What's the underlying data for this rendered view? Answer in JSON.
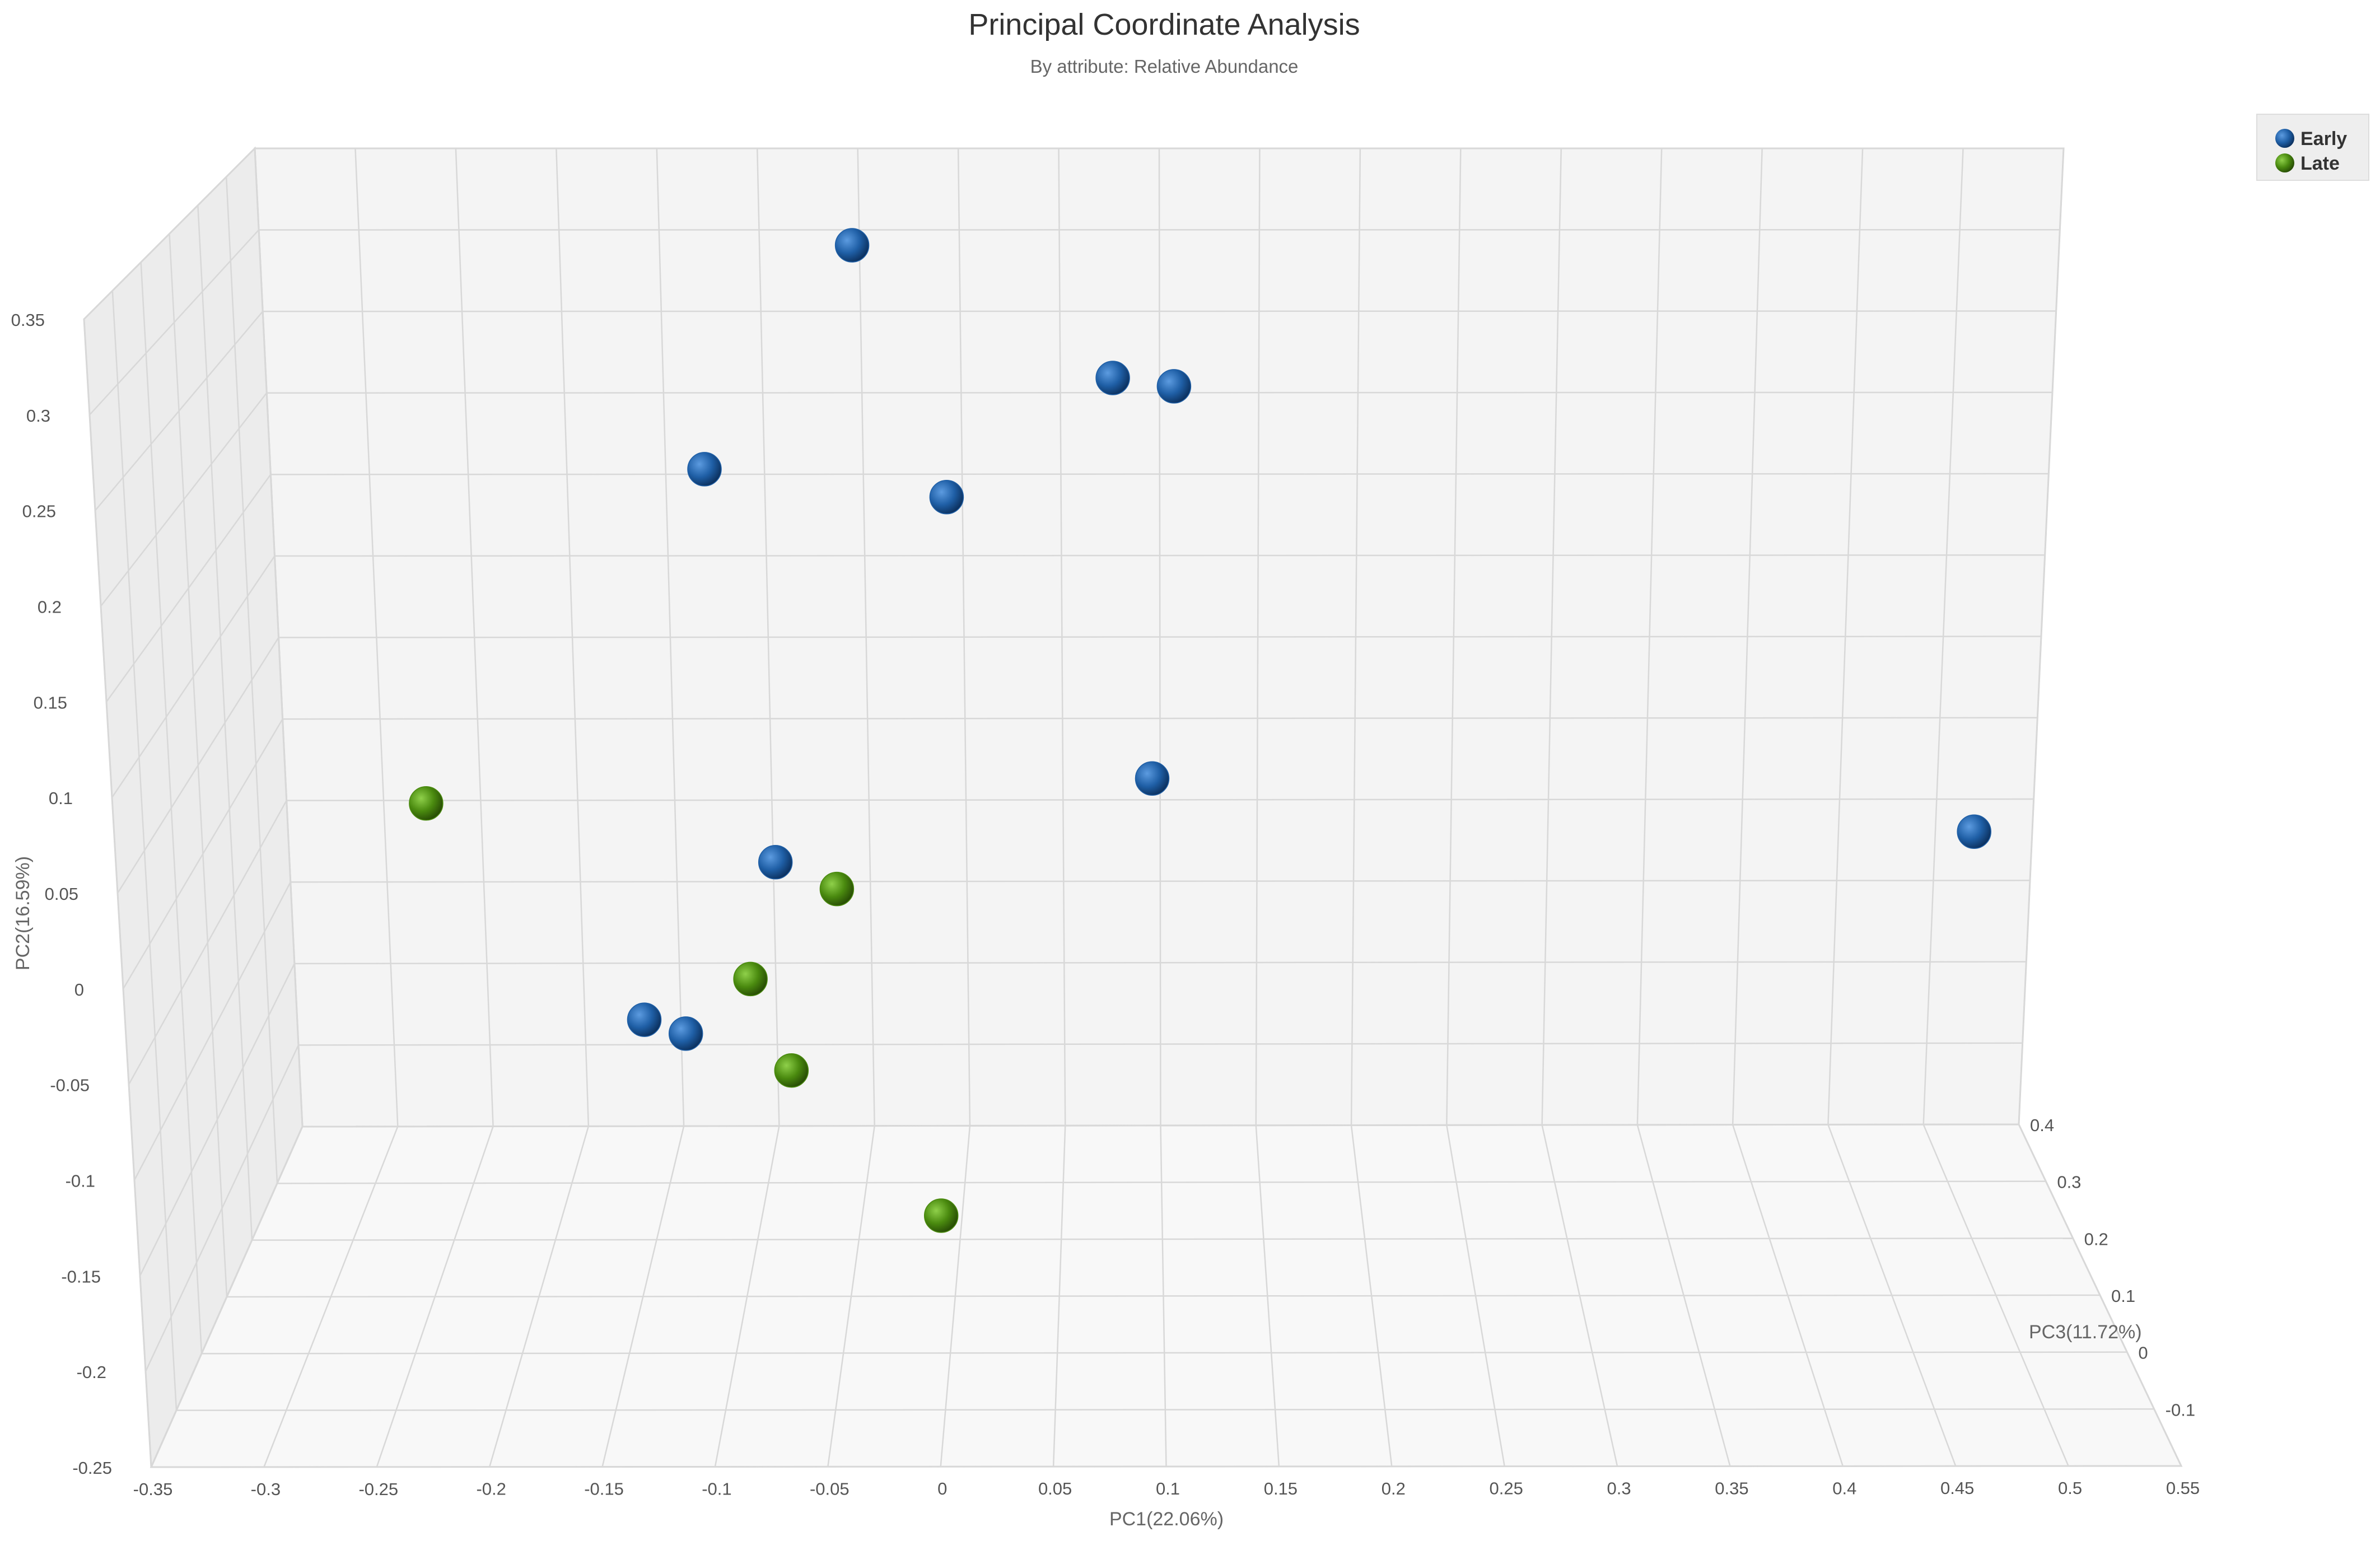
{
  "chart_data": {
    "type": "scatter",
    "title": "Principal Coordinate Analysis",
    "subtitle": "By attribute: Relative Abundance",
    "xlabel": "PC1(22.06%)",
    "ylabel": "PC2(16.59%)",
    "zlabel": "PC3(11.72%)",
    "x_ticks": [
      "-0.35",
      "-0.3",
      "-0.25",
      "-0.2",
      "-0.15",
      "-0.1",
      "-0.05",
      "0",
      "0.05",
      "0.1",
      "0.15",
      "0.2",
      "0.25",
      "0.3",
      "0.35",
      "0.4",
      "0.45",
      "0.5",
      "0.55"
    ],
    "y_ticks": [
      "-0.25",
      "-0.2",
      "-0.15",
      "-0.1",
      "-0.05",
      "0",
      "0.05",
      "0.1",
      "0.15",
      "0.2",
      "0.25",
      "0.3",
      "0.35"
    ],
    "z_ticks": [
      "-0.1",
      "0",
      "0.1",
      "0.2",
      "0.3",
      "0.4"
    ],
    "xlim": [
      -0.35,
      0.55
    ],
    "ylim": [
      -0.25,
      0.35
    ],
    "zlim": [
      -0.2,
      0.4
    ],
    "grid": true,
    "legend_position": "top-right",
    "series": [
      {
        "name": "Early",
        "color": "#1f5fa6",
        "points": [
          {
            "x": -0.05,
            "y": 0.3,
            "z": 0.35
          },
          {
            "x": 0.08,
            "y": 0.23,
            "z": 0.3
          },
          {
            "x": 0.11,
            "y": 0.225,
            "z": 0.3
          },
          {
            "x": -0.12,
            "y": 0.18,
            "z": 0.28
          },
          {
            "x": 0.0,
            "y": 0.17,
            "z": 0.25
          },
          {
            "x": 0.1,
            "y": 0.03,
            "z": 0.15
          },
          {
            "x": -0.08,
            "y": -0.01,
            "z": 0.12
          },
          {
            "x": -0.14,
            "y": -0.08,
            "z": 0.05
          },
          {
            "x": -0.12,
            "y": -0.085,
            "z": 0.04
          },
          {
            "x": 0.52,
            "y": -0.07,
            "z": 0.4
          }
        ]
      },
      {
        "name": "Late",
        "color": "#4a8a0f",
        "points": [
          {
            "x": -0.26,
            "y": -0.01,
            "z": 0.25
          },
          {
            "x": -0.05,
            "y": -0.02,
            "z": 0.1
          },
          {
            "x": -0.09,
            "y": -0.06,
            "z": 0.06
          },
          {
            "x": -0.07,
            "y": -0.1,
            "z": 0.02
          },
          {
            "x": 0.0,
            "y": -0.16,
            "z": -0.05
          }
        ]
      }
    ]
  }
}
